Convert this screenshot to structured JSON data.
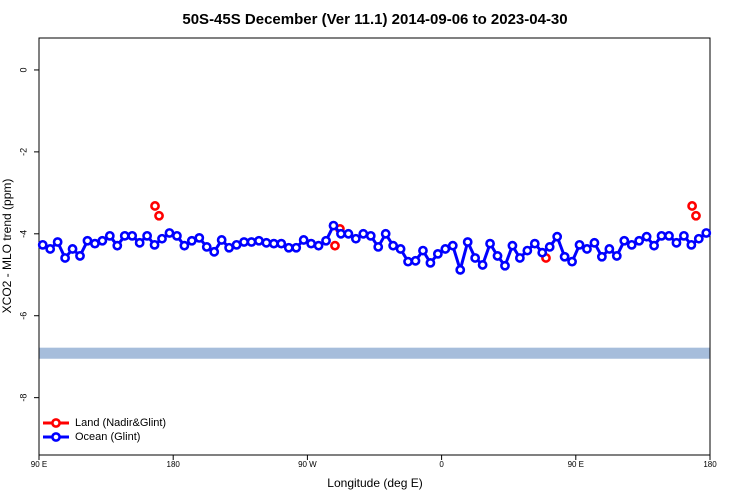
{
  "chart_data": {
    "type": "line",
    "title": "50S-45S December (Ver 11.1)   2014-09-06 to 2023-04-30",
    "x_label": "Longitude (deg E)",
    "y_label": "XCO2 - MLO trend (ppm)",
    "xlim": [
      90,
      540
    ],
    "ylim": [
      -9.4,
      0.78
    ],
    "xticks": [
      {
        "value": 90,
        "label": "90 E"
      },
      180,
      {
        "value": 270,
        "label": "90 W"
      },
      {
        "value": 360,
        "label": "0"
      },
      {
        "value": 450,
        "label": "90 E"
      },
      {
        "value": 540,
        "label": "180"
      }
    ],
    "yticks": [
      0,
      -2,
      -4,
      -6,
      -8
    ],
    "legend": "bottom-left",
    "band": {
      "ylim": [
        -7.05,
        -6.78
      ],
      "color": "#a6bddb"
    },
    "series": [
      {
        "name": "Land (Nadir&Glint)",
        "color": "#ff0000",
        "style": "points",
        "x": [
          167.8,
          170.5,
          288.5,
          291.8,
          430,
          528,
          530.6
        ],
        "values": [
          -3.32,
          -3.56,
          -4.29,
          -3.88,
          -4.59,
          -3.32,
          -3.56
        ]
      },
      {
        "name": "Ocean (Glint)",
        "color": "#0000ff",
        "style": "line",
        "x": [
          92.5,
          97.5,
          102.5,
          107.5,
          112.5,
          117.5,
          122.5,
          127.5,
          132.5,
          137.5,
          142.5,
          147.5,
          152.5,
          157.5,
          162.5,
          167.5,
          172.5,
          177.5,
          182.5,
          187.5,
          192.5,
          197.5,
          202.5,
          207.5,
          212.5,
          217.5,
          222.5,
          227.5,
          232.5,
          237.5,
          242.5,
          247.5,
          252.5,
          257.5,
          262.5,
          267.5,
          272.5,
          277.5,
          282.5,
          287.5,
          292.5,
          297.5,
          302.5,
          307.5,
          312.5,
          317.5,
          322.5,
          327.5,
          332.5,
          337.5,
          342.5,
          347.5,
          352.5,
          357.5,
          362.5,
          367.5,
          372.5,
          377.5,
          382.5,
          387.5,
          392.5,
          397.5,
          402.5,
          407.5,
          412.5,
          417.5,
          422.5,
          427.5,
          432.5,
          437.5,
          442.5,
          447.5,
          452.5,
          457.5,
          462.5,
          467.5,
          472.5,
          477.5,
          482.5,
          487.5,
          492.5,
          497.5,
          502.5,
          507.5,
          512.5,
          517.5,
          522.5,
          527.5,
          532.5,
          537.5
        ],
        "values": [
          -4.27,
          -4.37,
          -4.2,
          -4.59,
          -4.37,
          -4.54,
          -4.17,
          -4.24,
          -4.17,
          -4.05,
          -4.29,
          -4.05,
          -4.05,
          -4.22,
          -4.05,
          -4.27,
          -4.12,
          -3.98,
          -4.05,
          -4.29,
          -4.17,
          -4.1,
          -4.32,
          -4.44,
          -4.15,
          -4.34,
          -4.27,
          -4.2,
          -4.2,
          -4.17,
          -4.22,
          -4.24,
          -4.24,
          -4.34,
          -4.34,
          -4.15,
          -4.24,
          -4.29,
          -4.17,
          -3.8,
          -4.0,
          -4.0,
          -4.12,
          -4.0,
          -4.05,
          -4.32,
          -4.0,
          -4.29,
          -4.37,
          -4.68,
          -4.66,
          -4.41,
          -4.71,
          -4.49,
          -4.37,
          -4.29,
          -4.88,
          -4.2,
          -4.59,
          -4.76,
          -4.24,
          -4.54,
          -4.78,
          -4.29,
          -4.59,
          -4.41,
          -4.24,
          -4.46,
          -4.32,
          -4.07,
          -4.56,
          -4.68,
          -4.27,
          -4.37,
          -4.22,
          -4.56,
          -4.37,
          -4.54,
          -4.17,
          -4.27,
          -4.17,
          -4.07,
          -4.29,
          -4.05,
          -4.05,
          -4.22,
          -4.05,
          -4.27,
          -4.12,
          -3.98
        ]
      }
    ]
  }
}
